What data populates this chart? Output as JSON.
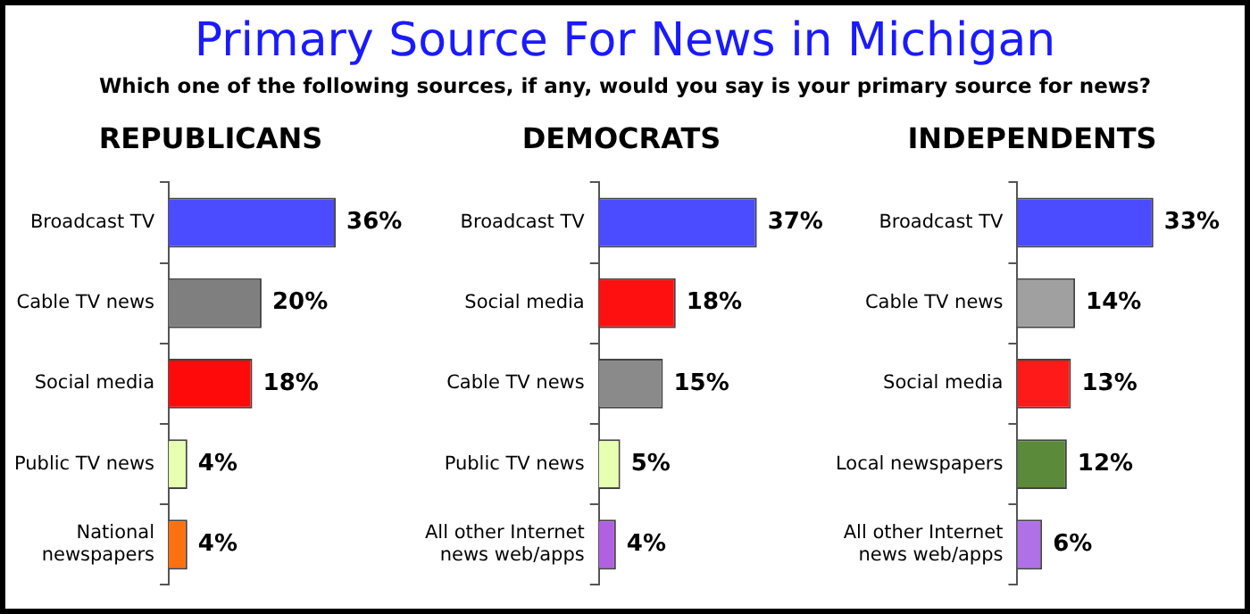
{
  "chart_data": [
    {
      "type": "bar",
      "orientation": "horizontal",
      "title": "REPUBLICANS",
      "annotations": [
        "Primary Source For News in Michigan",
        "Which one of the following sources, if any, would you say is your primary source for news?"
      ],
      "categories": [
        "Broadcast TV",
        "Cable TV news",
        "Social media",
        "Public TV news",
        "National newspapers"
      ],
      "values": [
        36,
        20,
        18,
        4,
        4
      ],
      "value_labels": [
        "36%",
        "20%",
        "18%",
        "4%",
        "4%"
      ],
      "colors": [
        "#4b4bff",
        "#7f7f7f",
        "#ff0a0a",
        "#e6ffb0",
        "#ff7010"
      ],
      "legend": false,
      "tick_labels": "y"
    },
    {
      "type": "bar",
      "orientation": "horizontal",
      "title": "DEMOCRATS",
      "categories": [
        "Broadcast TV",
        "Social media",
        "Cable TV news",
        "Public TV news",
        "All other Internet news web/apps"
      ],
      "values": [
        37,
        18,
        15,
        5,
        4
      ],
      "value_labels": [
        "37%",
        "18%",
        "15%",
        "5%",
        "4%"
      ],
      "colors": [
        "#4b4bff",
        "#ff1010",
        "#8a8a8a",
        "#e6ffb0",
        "#b060e0"
      ],
      "legend": false,
      "tick_labels": "y"
    },
    {
      "type": "bar",
      "orientation": "horizontal",
      "title": "INDEPENDENTS",
      "categories": [
        "Broadcast TV",
        "Cable TV news",
        "Social media",
        "Local newspapers",
        "All other Internet news web/apps"
      ],
      "values": [
        33,
        14,
        13,
        12,
        6
      ],
      "value_labels": [
        "33%",
        "14%",
        "13%",
        "12%",
        "6%"
      ],
      "colors": [
        "#4b4bff",
        "#a0a0a0",
        "#ff1a1a",
        "#5a8a3a",
        "#b070e8"
      ],
      "legend": false,
      "tick_labels": "y"
    }
  ]
}
